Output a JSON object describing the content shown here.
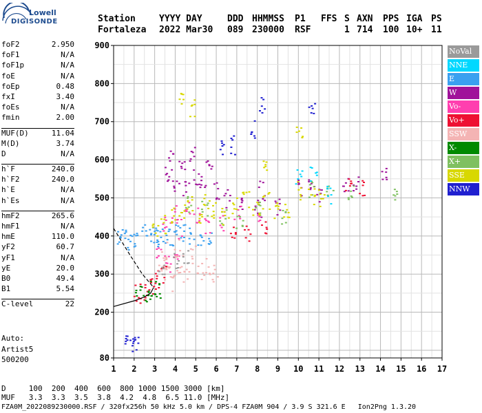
{
  "header": {
    "row1": [
      "Station",
      "YYYY DAY",
      "DDD",
      "HHMMSS",
      "P1",
      "FFS",
      "S",
      "AXN",
      "PPS",
      "IGA",
      "PS"
    ],
    "row2": [
      "Fortaleza",
      "2022 Mar30",
      "089",
      "230000",
      "RSF",
      "1",
      "714",
      "100",
      "10+",
      "11"
    ]
  },
  "logo": {
    "lowell": "Lowell",
    "digisonde": "DIGISONDE"
  },
  "parameters": [
    {
      "name": "foF2",
      "value": "2.950"
    },
    {
      "name": "foF1",
      "value": "N/A"
    },
    {
      "name": "foF1p",
      "value": "N/A"
    },
    {
      "name": "foE",
      "value": "N/A"
    },
    {
      "name": "foEp",
      "value": "0.48"
    },
    {
      "name": "fxI",
      "value": "3.40"
    },
    {
      "name": "foEs",
      "value": "N/A"
    },
    {
      "name": "fmin",
      "value": "2.00"
    },
    {
      "name": "MUF(D)",
      "value": "11.04"
    },
    {
      "name": "M(D)",
      "value": "3.74"
    },
    {
      "name": "D",
      "value": "N/A"
    },
    {
      "name": "h`F",
      "value": "240.0"
    },
    {
      "name": "h`F2",
      "value": "240.0"
    },
    {
      "name": "h`E",
      "value": "N/A"
    },
    {
      "name": "h`Es",
      "value": "N/A"
    },
    {
      "name": "hmF2",
      "value": "265.6"
    },
    {
      "name": "hmF1",
      "value": "N/A"
    },
    {
      "name": "hmE",
      "value": "110.0"
    },
    {
      "name": "yF2",
      "value": "60.7"
    },
    {
      "name": "yF1",
      "value": "N/A"
    },
    {
      "name": "yE",
      "value": "20.0"
    },
    {
      "name": "B0",
      "value": "49.4"
    },
    {
      "name": "B1",
      "value": "5.54"
    },
    {
      "name": "C-level",
      "value": "22"
    }
  ],
  "auto": [
    "Auto:",
    "Artist5",
    "500200"
  ],
  "footer": {
    "d_row": "D     100  200  400  600  800 1000 1500 3000 [km]",
    "muf_row": "MUF   3.3  3.3  3.5  3.8  4.2  4.8  6.5 11.0 [MHz]",
    "info": "FZA0M_2022089230000.RSF / 320fx256h 50 kHz 5.0 km / DPS-4 FZA0M 904 / 3.9 S 321.6 E   Ion2Png 1.3.20"
  },
  "legend": [
    {
      "label": "NoVal",
      "color": "#9a9a9a"
    },
    {
      "label": "NNE",
      "color": "#00d8ff"
    },
    {
      "label": "E",
      "color": "#3aa0f0"
    },
    {
      "label": "W",
      "color": "#a0129a"
    },
    {
      "label": "Vo-",
      "color": "#ff3faf"
    },
    {
      "label": "Vo+",
      "color": "#ee1133"
    },
    {
      "label": "SSW",
      "color": "#f4b4b4"
    },
    {
      "label": "X-",
      "color": "#008a00"
    },
    {
      "label": "X+",
      "color": "#7fc060"
    },
    {
      "label": "SSE",
      "color": "#d8d800"
    },
    {
      "label": "NNW",
      "color": "#2020d0"
    }
  ],
  "chart_data": {
    "type": "scatter",
    "title": "",
    "xlabel": "",
    "ylabel": "",
    "xlim": [
      1,
      17
    ],
    "ylim": [
      80,
      900
    ],
    "x_ticks": [
      1,
      2,
      3,
      4,
      5,
      6,
      7,
      8,
      9,
      10,
      11,
      12,
      13,
      14,
      15,
      16,
      17
    ],
    "y_ticks": [
      80,
      200,
      300,
      400,
      500,
      600,
      700,
      800,
      900
    ],
    "grid": true,
    "legend_position": "right",
    "series": [
      {
        "name": "E",
        "color": "#3aa0f0",
        "points": [
          [
            1.3,
            400
          ],
          [
            1.5,
            395
          ],
          [
            1.8,
            390
          ],
          [
            2.1,
            395
          ],
          [
            2.5,
            410
          ],
          [
            2.8,
            405
          ],
          [
            3.0,
            398
          ],
          [
            3.2,
            410
          ],
          [
            3.5,
            402
          ],
          [
            3.8,
            395
          ],
          [
            4.1,
            405
          ],
          [
            4.4,
            410
          ],
          [
            4.8,
            400
          ],
          [
            5.2,
            398
          ],
          [
            5.6,
            405
          ]
        ]
      },
      {
        "name": "W",
        "color": "#a0129a",
        "points": [
          [
            3.5,
            560
          ],
          [
            3.8,
            600
          ],
          [
            4.0,
            540
          ],
          [
            4.3,
            580
          ],
          [
            4.5,
            520
          ],
          [
            4.8,
            610
          ],
          [
            5.0,
            560
          ],
          [
            5.3,
            540
          ],
          [
            5.6,
            590
          ],
          [
            6.0,
            520
          ],
          [
            6.5,
            500
          ],
          [
            7.2,
            480
          ],
          [
            8.0,
            470
          ],
          [
            8.2,
            520
          ],
          [
            9.0,
            480
          ],
          [
            10.1,
            530
          ],
          [
            10.6,
            540
          ],
          [
            11.0,
            510
          ],
          [
            12.3,
            530
          ],
          [
            12.8,
            535
          ],
          [
            14.1,
            565
          ]
        ]
      },
      {
        "name": "Vo-",
        "color": "#ff3faf",
        "points": [
          [
            3.5,
            430
          ],
          [
            3.9,
            460
          ],
          [
            4.2,
            420
          ],
          [
            4.6,
            470
          ],
          [
            5.0,
            450
          ],
          [
            5.5,
            430
          ],
          [
            6.2,
            440
          ],
          [
            7.0,
            460
          ],
          [
            8.1,
            440
          ],
          [
            3.2,
            350
          ],
          [
            3.6,
            330
          ],
          [
            4.0,
            360
          ]
        ]
      },
      {
        "name": "Vo+",
        "color": "#ee1133",
        "points": [
          [
            2.1,
            250
          ],
          [
            2.4,
            255
          ],
          [
            2.7,
            262
          ],
          [
            2.9,
            270
          ],
          [
            3.1,
            285
          ],
          [
            3.4,
            300
          ],
          [
            6.8,
            420
          ],
          [
            7.5,
            410
          ],
          [
            8.3,
            420
          ],
          [
            12.4,
            535
          ],
          [
            13.1,
            530
          ]
        ]
      },
      {
        "name": "SSW",
        "color": "#f4b4b4",
        "points": [
          [
            3.3,
            300
          ],
          [
            3.6,
            320
          ],
          [
            3.9,
            280
          ],
          [
            4.2,
            330
          ],
          [
            4.5,
            300
          ],
          [
            4.8,
            350
          ],
          [
            5.2,
            310
          ],
          [
            5.5,
            320
          ],
          [
            5.9,
            300
          ],
          [
            3.4,
            360
          ],
          [
            4.1,
            370
          ]
        ]
      },
      {
        "name": "X-",
        "color": "#008a00",
        "points": [
          [
            2.2,
            245
          ],
          [
            2.5,
            250
          ],
          [
            2.9,
            258
          ],
          [
            3.1,
            262
          ]
        ]
      },
      {
        "name": "X+",
        "color": "#7fc060",
        "points": [
          [
            4.6,
            480
          ],
          [
            5.4,
            470
          ],
          [
            6.3,
            450
          ],
          [
            7.1,
            440
          ],
          [
            8.0,
            470
          ],
          [
            9.2,
            450
          ],
          [
            10.6,
            520
          ],
          [
            11.5,
            510
          ],
          [
            12.5,
            520
          ],
          [
            14.6,
            510
          ]
        ]
      },
      {
        "name": "SSE",
        "color": "#d8d800",
        "points": [
          [
            3.0,
            410
          ],
          [
            3.4,
            430
          ],
          [
            3.8,
            450
          ],
          [
            4.3,
            470
          ],
          [
            4.7,
            480
          ],
          [
            5.1,
            460
          ],
          [
            5.5,
            490
          ],
          [
            5.9,
            470
          ],
          [
            6.4,
            450
          ],
          [
            6.9,
            480
          ],
          [
            7.4,
            500
          ],
          [
            7.9,
            470
          ],
          [
            8.4,
            490
          ],
          [
            8.9,
            470
          ],
          [
            9.4,
            460
          ],
          [
            10.1,
            520
          ],
          [
            10.6,
            500
          ],
          [
            11.1,
            500
          ],
          [
            4.3,
            760
          ],
          [
            4.8,
            740
          ],
          [
            8.4,
            590
          ],
          [
            10.0,
            670
          ]
        ]
      },
      {
        "name": "NNW",
        "color": "#2020d0",
        "points": [
          [
            1.6,
            120
          ],
          [
            1.9,
            125
          ],
          [
            2.0,
            118
          ],
          [
            6.2,
            630
          ],
          [
            6.8,
            640
          ],
          [
            7.8,
            680
          ],
          [
            8.2,
            740
          ],
          [
            10.6,
            725
          ]
        ]
      },
      {
        "name": "NNE",
        "color": "#00d8ff",
        "points": [
          [
            10.0,
            550
          ],
          [
            10.7,
            560
          ],
          [
            11.4,
            510
          ]
        ]
      },
      {
        "name": "NoVal",
        "color": "#9a9a9a",
        "points": [
          [
            3.3,
            320
          ],
          [
            4.0,
            330
          ],
          [
            4.5,
            345
          ]
        ]
      }
    ],
    "profile_curve": [
      [
        1.0,
        215
      ],
      [
        2.0,
        230
      ],
      [
        2.5,
        240
      ],
      [
        2.8,
        250
      ],
      [
        2.95,
        265
      ]
    ],
    "dashed_curve": [
      [
        1.0,
        420
      ],
      [
        1.8,
        350
      ],
      [
        2.4,
        300
      ],
      [
        2.95,
        265
      ]
    ]
  }
}
